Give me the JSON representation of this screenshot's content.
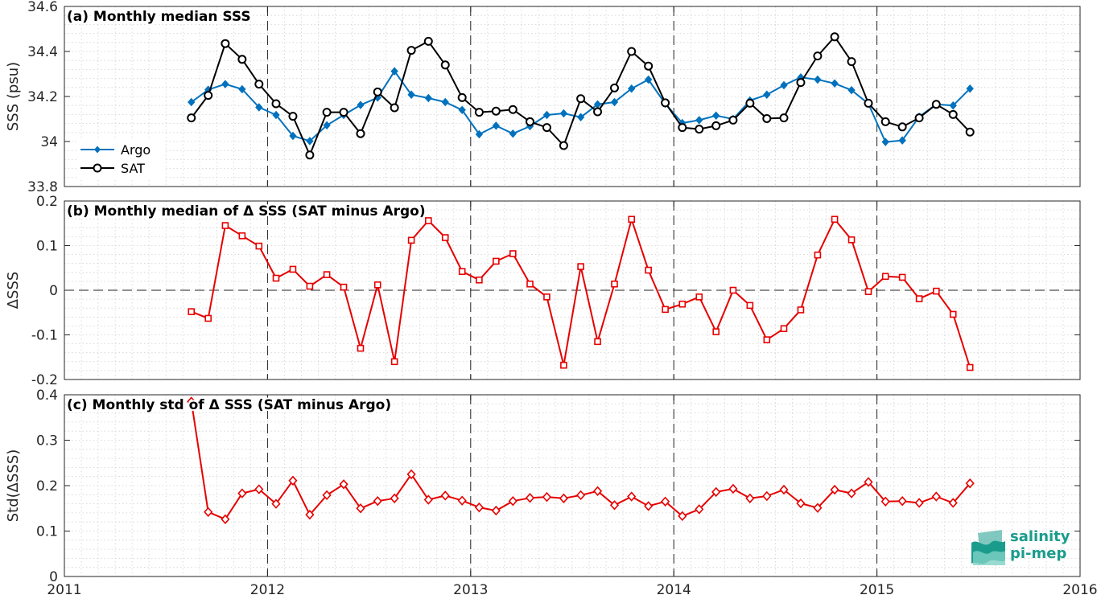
{
  "colors": {
    "argo": "#0072BD",
    "sat": "#000000",
    "delta": "#E60000",
    "axis": "#262626",
    "grid": "#d2d2d2",
    "logo": "#1a9c8c"
  },
  "logo": {
    "line1": "salinity",
    "line2": "pi-mep"
  },
  "chart_data": [
    {
      "type": "line",
      "title": "(a) Monthly median SSS",
      "xlabel": "",
      "ylabel": "SSS (psu)",
      "xlim": [
        2011,
        2016
      ],
      "ylim": [
        33.8,
        34.6
      ],
      "xticks": [
        2011,
        2012,
        2013,
        2014,
        2015,
        2016
      ],
      "xtick_labels": [
        "2011",
        "2012",
        "2013",
        "2014",
        "2015",
        "2016"
      ],
      "yticks": [
        33.8,
        34,
        34.2,
        34.4,
        34.6
      ],
      "ytick_labels": [
        "33.8",
        "34",
        "34.2",
        "34.4",
        "34.6"
      ],
      "grid": true,
      "legend": "bottom-left",
      "x": [
        2011.625,
        2011.708,
        2011.792,
        2011.875,
        2011.958,
        2012.042,
        2012.125,
        2012.208,
        2012.292,
        2012.375,
        2012.458,
        2012.542,
        2012.625,
        2012.708,
        2012.792,
        2012.875,
        2012.958,
        2013.042,
        2013.125,
        2013.208,
        2013.292,
        2013.375,
        2013.458,
        2013.542,
        2013.625,
        2013.708,
        2013.792,
        2013.875,
        2013.958,
        2014.042,
        2014.125,
        2014.208,
        2014.292,
        2014.375,
        2014.458,
        2014.542,
        2014.625,
        2014.708,
        2014.792,
        2014.875,
        2014.958,
        2015.042,
        2015.125,
        2015.208,
        2015.292,
        2015.375,
        2015.458
      ],
      "series": [
        {
          "name": "Argo",
          "marker": "diamond-filled",
          "values": [
            34.175,
            34.23,
            34.255,
            34.232,
            34.152,
            34.118,
            34.025,
            34.002,
            34.072,
            34.118,
            34.162,
            34.195,
            34.312,
            34.208,
            34.193,
            34.175,
            34.14,
            34.032,
            34.07,
            34.035,
            34.068,
            34.118,
            34.125,
            34.108,
            34.165,
            34.175,
            34.235,
            34.275,
            34.168,
            34.082,
            34.095,
            34.115,
            34.1,
            34.182,
            34.208,
            34.25,
            34.285,
            34.275,
            34.258,
            34.228,
            34.168,
            33.998,
            34.005,
            34.11,
            34.165,
            34.16,
            34.235
          ]
        },
        {
          "name": "SAT",
          "marker": "circle-open",
          "values": [
            34.105,
            34.205,
            34.435,
            34.365,
            34.255,
            34.168,
            34.112,
            33.94,
            34.13,
            34.13,
            34.035,
            34.22,
            34.15,
            34.405,
            34.445,
            34.34,
            34.195,
            34.13,
            34.135,
            34.142,
            34.088,
            34.062,
            33.982,
            34.19,
            34.132,
            34.238,
            34.4,
            34.335,
            34.172,
            34.062,
            34.055,
            34.07,
            34.095,
            34.17,
            34.102,
            34.105,
            34.262,
            34.38,
            34.465,
            34.355,
            34.17,
            34.088,
            34.065,
            34.105,
            34.165,
            34.12,
            34.042
          ]
        }
      ]
    },
    {
      "type": "line",
      "title": "(b) Monthly median of Δ SSS (SAT minus Argo)",
      "xlabel": "",
      "ylabel": "ΔSSS",
      "xlim": [
        2011,
        2016
      ],
      "ylim": [
        -0.2,
        0.2
      ],
      "yticks": [
        -0.2,
        -0.1,
        0,
        0.1,
        0.2
      ],
      "ytick_labels": [
        "-0.2",
        "-0.1",
        "0",
        "0.1",
        "0.2"
      ],
      "grid": true,
      "reference_line": 0,
      "x": [
        2011.625,
        2011.708,
        2011.792,
        2011.875,
        2011.958,
        2012.042,
        2012.125,
        2012.208,
        2012.292,
        2012.375,
        2012.458,
        2012.542,
        2012.625,
        2012.708,
        2012.792,
        2012.875,
        2012.958,
        2013.042,
        2013.125,
        2013.208,
        2013.292,
        2013.375,
        2013.458,
        2013.542,
        2013.625,
        2013.708,
        2013.792,
        2013.875,
        2013.958,
        2014.042,
        2014.125,
        2014.208,
        2014.292,
        2014.375,
        2014.458,
        2014.542,
        2014.625,
        2014.708,
        2014.792,
        2014.875,
        2014.958,
        2015.042,
        2015.125,
        2015.208,
        2015.292,
        2015.375,
        2015.458
      ],
      "series": [
        {
          "marker": "square-open",
          "values": [
            -0.048,
            -0.063,
            0.145,
            0.122,
            0.099,
            0.027,
            0.047,
            0.009,
            0.035,
            0.007,
            -0.13,
            0.012,
            -0.16,
            0.112,
            0.156,
            0.118,
            0.042,
            0.023,
            0.065,
            0.082,
            0.014,
            -0.015,
            -0.168,
            0.053,
            -0.115,
            0.014,
            0.159,
            0.045,
            -0.043,
            -0.031,
            -0.015,
            -0.093,
            0.0,
            -0.034,
            -0.111,
            -0.086,
            -0.044,
            0.079,
            0.159,
            0.113,
            -0.003,
            0.031,
            0.029,
            -0.019,
            -0.002,
            -0.054,
            -0.173
          ]
        }
      ]
    },
    {
      "type": "line",
      "title": "(c) Monthly std of Δ SSS (SAT minus Argo)",
      "xlabel": "",
      "ylabel": "Std(ΔSSS)",
      "xlim": [
        2011,
        2016
      ],
      "ylim": [
        0,
        0.4
      ],
      "yticks": [
        0,
        0.1,
        0.2,
        0.3,
        0.4
      ],
      "ytick_labels": [
        "0",
        "0.1",
        "0.2",
        "0.3",
        "0.4"
      ],
      "grid": true,
      "x": [
        2011.625,
        2011.708,
        2011.792,
        2011.875,
        2011.958,
        2012.042,
        2012.125,
        2012.208,
        2012.292,
        2012.375,
        2012.458,
        2012.542,
        2012.625,
        2012.708,
        2012.792,
        2012.875,
        2012.958,
        2013.042,
        2013.125,
        2013.208,
        2013.292,
        2013.375,
        2013.458,
        2013.542,
        2013.625,
        2013.708,
        2013.792,
        2013.875,
        2013.958,
        2014.042,
        2014.125,
        2014.208,
        2014.292,
        2014.375,
        2014.458,
        2014.542,
        2014.625,
        2014.708,
        2014.792,
        2014.875,
        2014.958,
        2015.042,
        2015.125,
        2015.208,
        2015.292,
        2015.375,
        2015.458
      ],
      "series": [
        {
          "marker": "diamond-open",
          "values": [
            0.385,
            0.142,
            0.126,
            0.183,
            0.192,
            0.16,
            0.211,
            0.136,
            0.179,
            0.203,
            0.15,
            0.166,
            0.172,
            0.225,
            0.169,
            0.178,
            0.167,
            0.152,
            0.145,
            0.166,
            0.173,
            0.175,
            0.172,
            0.179,
            0.188,
            0.157,
            0.176,
            0.155,
            0.165,
            0.133,
            0.148,
            0.186,
            0.193,
            0.172,
            0.177,
            0.191,
            0.161,
            0.151,
            0.191,
            0.183,
            0.208,
            0.165,
            0.166,
            0.162,
            0.176,
            0.162,
            0.205
          ]
        }
      ]
    }
  ]
}
